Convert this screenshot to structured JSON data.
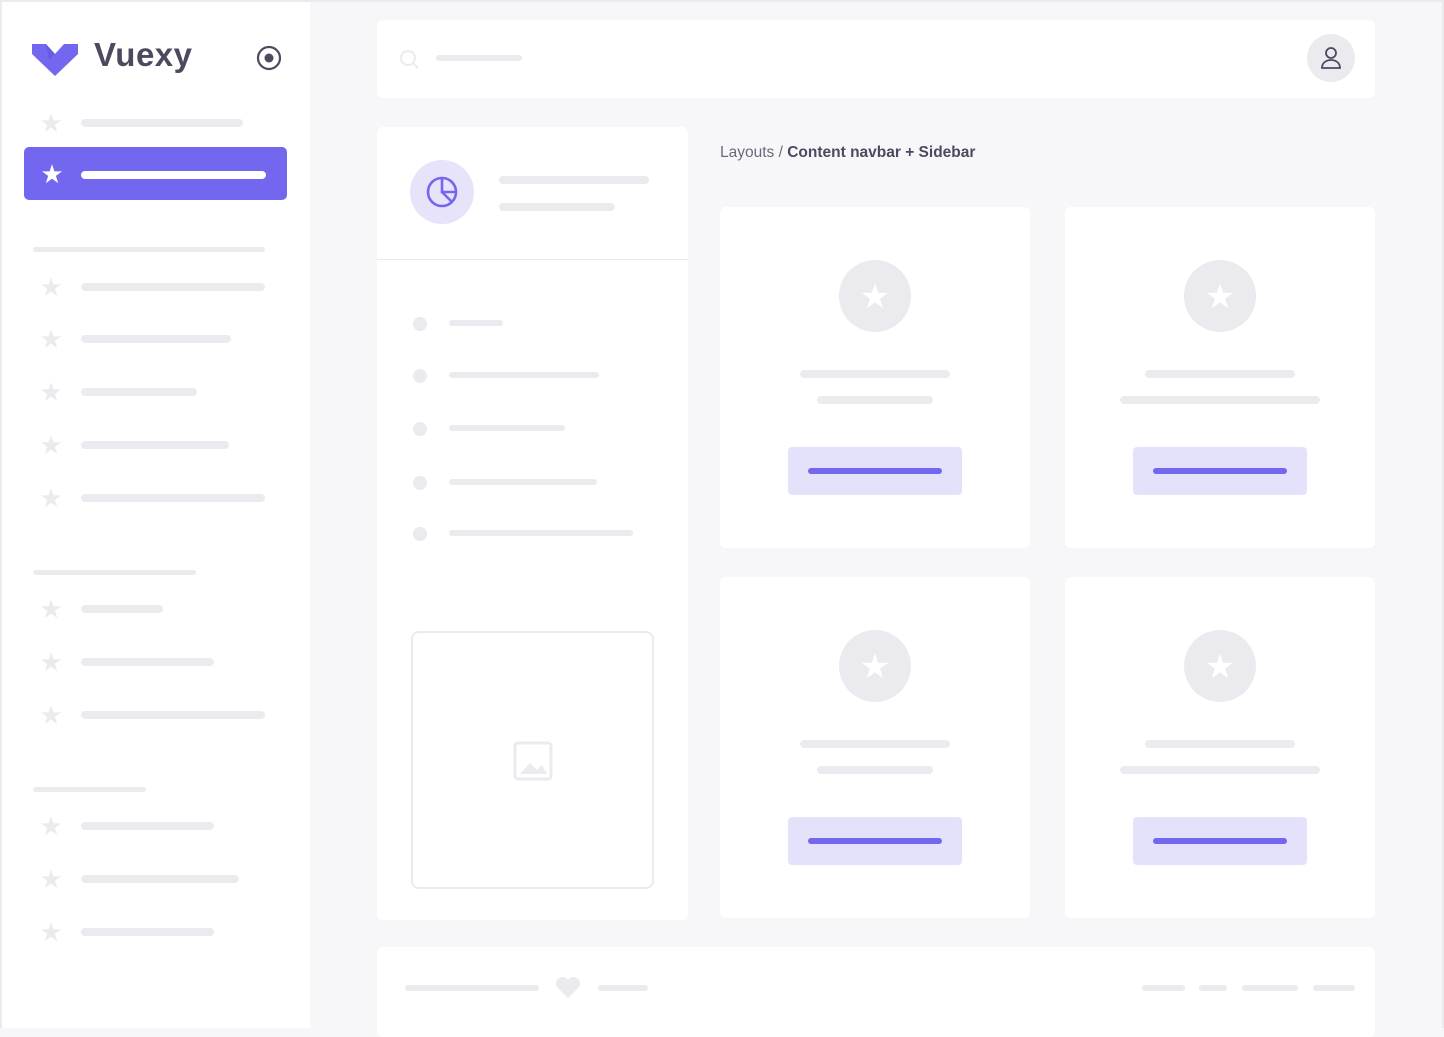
{
  "brand": {
    "name": "Vuexy",
    "logo_color": "#7367f0"
  },
  "accent": "#7367f0",
  "breadcrumb": {
    "parent": "Layouts",
    "separator": " / ",
    "current": "Content navbar + Sidebar"
  },
  "icons": {
    "toggle": "radio-target-icon",
    "nav": "star-icon",
    "search": "search-icon",
    "user": "user-icon",
    "panel": "pie-chart-icon",
    "image": "image-icon",
    "footer": "heart-icon"
  }
}
